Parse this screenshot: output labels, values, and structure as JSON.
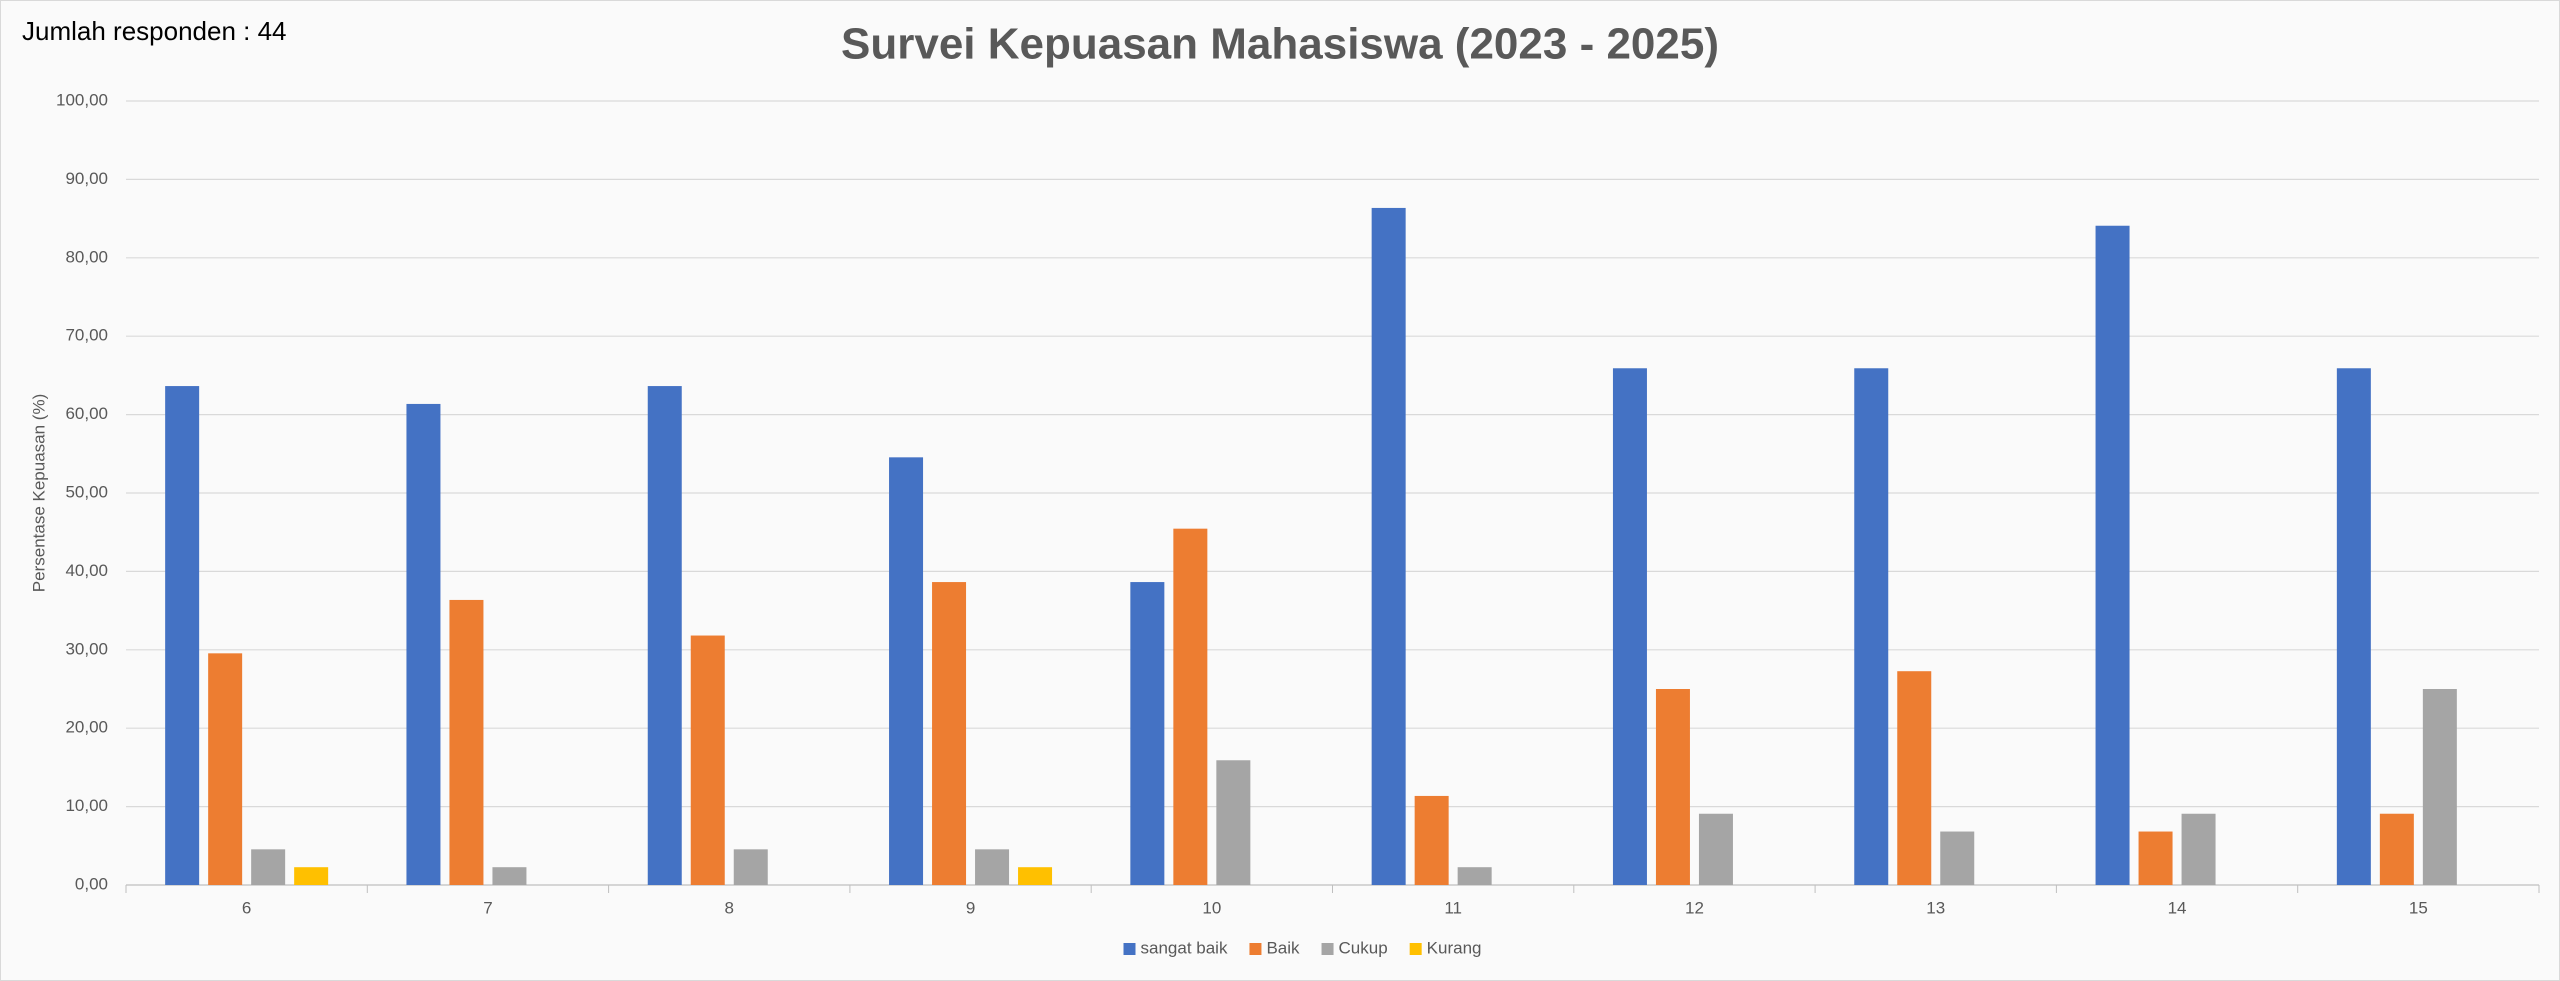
{
  "chart_data": {
    "type": "bar",
    "title": "Survei Kepuasan Mahasiswa (2023 - 2025)",
    "annotation": "Jumlah responden : 44",
    "y_label": "Persentase Kepuasan (%)",
    "categories": [
      "6",
      "7",
      "8",
      "9",
      "10",
      "11",
      "12",
      "13",
      "14",
      "15"
    ],
    "series": [
      {
        "name": "sangat baik",
        "color": "#4472c4",
        "values": [
          63.64,
          61.36,
          63.64,
          54.55,
          38.64,
          86.36,
          65.91,
          65.91,
          84.09,
          65.91
        ]
      },
      {
        "name": "Baik",
        "color": "#ed7d31",
        "values": [
          29.55,
          36.36,
          31.82,
          38.64,
          45.45,
          11.36,
          25.0,
          27.27,
          6.82,
          9.09
        ]
      },
      {
        "name": "Cukup",
        "color": "#a5a5a5",
        "values": [
          4.55,
          2.27,
          4.55,
          4.55,
          15.91,
          2.27,
          9.09,
          6.82,
          9.09,
          25.0
        ]
      },
      {
        "name": "Kurang",
        "color": "#ffc000",
        "values": [
          2.27,
          0,
          0,
          2.27,
          0,
          0,
          0,
          0,
          0,
          0
        ]
      }
    ],
    "ylim": [
      0,
      100
    ],
    "yticks": [
      {
        "value": 0,
        "label": "0,00"
      },
      {
        "value": 10,
        "label": "10,00"
      },
      {
        "value": 20,
        "label": "20,00"
      },
      {
        "value": 30,
        "label": "30,00"
      },
      {
        "value": 40,
        "label": "40,00"
      },
      {
        "value": 50,
        "label": "50,00"
      },
      {
        "value": 60,
        "label": "60,00"
      },
      {
        "value": 70,
        "label": "70,00"
      },
      {
        "value": 80,
        "label": "80,00"
      },
      {
        "value": 90,
        "label": "90,00"
      },
      {
        "value": 100,
        "label": "100,00"
      }
    ],
    "grid": true,
    "legend": "bottom"
  }
}
